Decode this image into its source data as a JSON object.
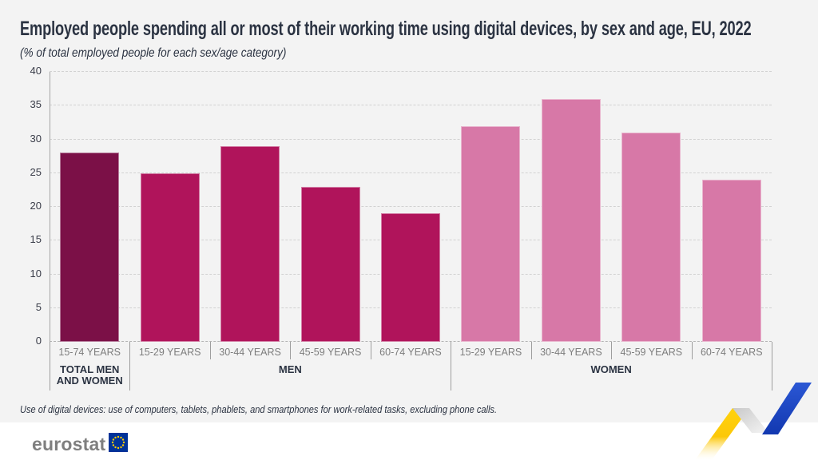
{
  "header": {
    "title": "Employed people spending all or most of their working time using digital devices, by sex and age, EU, 2022",
    "subtitle": "(% of total employed people for each sex/age category)"
  },
  "chart_data": {
    "type": "bar",
    "title": "Employed people spending all or most of their working time using digital devices, by sex and age, EU, 2022",
    "subtitle": "(% of total employed people for each sex/age category)",
    "xlabel": "",
    "ylabel": "% of total employed people for each sex/age category",
    "ylim": [
      0,
      40
    ],
    "yticks": [
      0,
      5,
      10,
      15,
      20,
      25,
      30,
      35,
      40
    ],
    "grid": "horizontal-dashed",
    "legend_position": "none",
    "categories": [
      "15-74 YEARS",
      "15-29 YEARS",
      "30-44 YEARS",
      "45-59 YEARS",
      "60-74 YEARS",
      "15-29 YEARS",
      "30-44 YEARS",
      "45-59 YEARS",
      "60-74 YEARS"
    ],
    "values": [
      28,
      25,
      29,
      23,
      19,
      32,
      36,
      31,
      24
    ],
    "bar_color_keys": [
      "total",
      "men",
      "men",
      "men",
      "men",
      "women",
      "women",
      "women",
      "women"
    ],
    "groups": [
      {
        "label": "TOTAL MEN AND WOMEN",
        "start": 0,
        "span": 1
      },
      {
        "label": "MEN",
        "start": 1,
        "span": 4
      },
      {
        "label": "WOMEN",
        "start": 5,
        "span": 4
      }
    ],
    "series_colors": {
      "total": "#7b1047",
      "men": "#b0145b",
      "women": "#d778a7"
    }
  },
  "footnote": "Use of digital devices: use of computers, tablets, phablets, and smartphones for work-related tasks, excluding phone calls.",
  "logo": {
    "text": "eurostat"
  },
  "theme": {
    "background": "#f3f3f3",
    "footer_background": "#ffffff",
    "title_color": "#2b3342",
    "axis_label_color": "#3a3d49",
    "category_label_color": "#7d7d7d",
    "group_label_color": "#2b3342",
    "gridline_color": "#d2d2d2",
    "axis_line_color": "#a6a6a6",
    "divider_color": "#9e9e9e",
    "eu_flag_blue": "#003399",
    "eu_flag_yellow": "#ffcc00",
    "ribbon_yellow": "#fdc900",
    "ribbon_blue": "#1d49c6",
    "logo_text_color": "#7f7f7f"
  }
}
